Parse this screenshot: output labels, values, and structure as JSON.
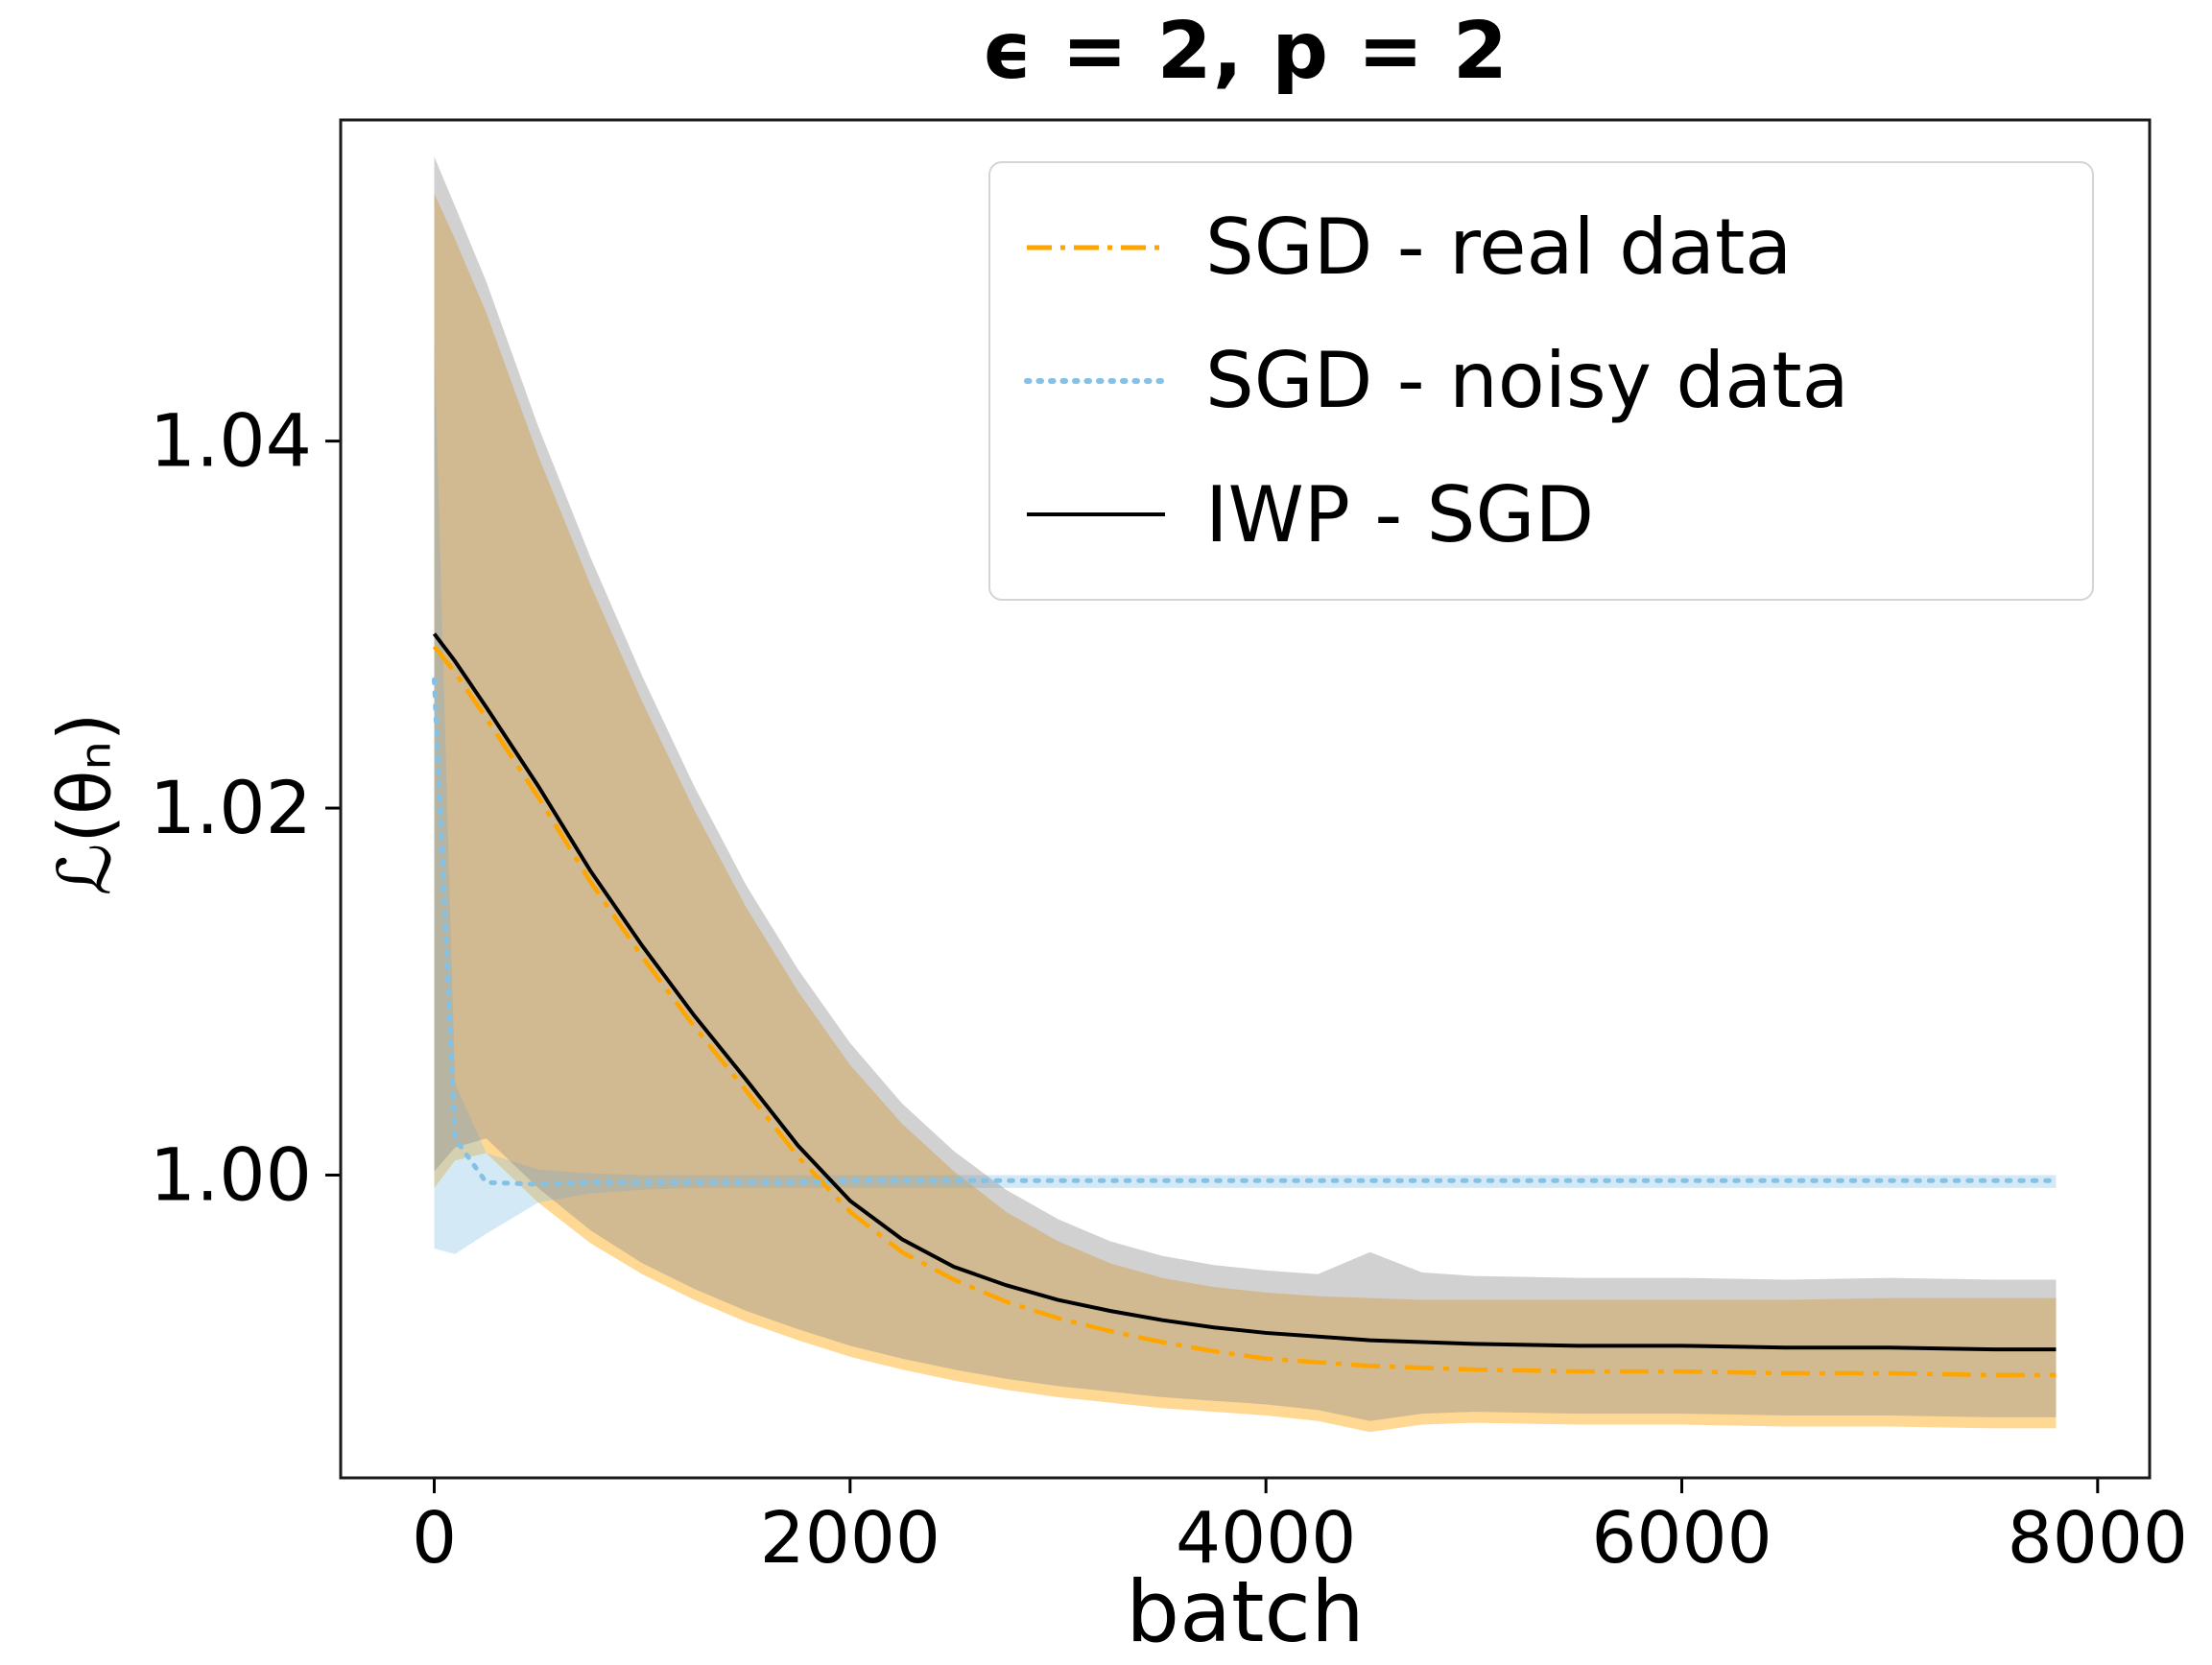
{
  "title": "ϵ = 2, p = 2",
  "axes": {
    "xlabel": "batch",
    "ylabel": "ℒ(θₙ)",
    "x_range": [
      -450,
      8250
    ],
    "y_range": [
      0.9835,
      1.0575
    ],
    "x_ticks": [
      0,
      2000,
      4000,
      6000,
      8000
    ],
    "x_tick_labels": [
      "0",
      "2000",
      "4000",
      "6000",
      "8000"
    ],
    "y_ticks": [
      1.0,
      1.02,
      1.04
    ],
    "y_tick_labels": [
      "1.00",
      "1.02",
      "1.04"
    ],
    "grid": false
  },
  "legend": {
    "position": "upper right",
    "items": [
      {
        "label": "SGD - real data",
        "color": "#FFA500",
        "style": "dashdot"
      },
      {
        "label": "SGD - noisy data",
        "color": "#85C1E5",
        "style": "dotted"
      },
      {
        "label": "IWP - SGD",
        "color": "#000000",
        "style": "solid"
      }
    ]
  },
  "chart_data": {
    "type": "line",
    "title": "ϵ = 2, p = 2",
    "xlabel": "batch",
    "ylabel": "ℒ(θₙ)",
    "xlim": [
      -450,
      8250
    ],
    "ylim": [
      0.9835,
      1.0575
    ],
    "x": [
      0,
      100,
      250,
      500,
      750,
      1000,
      1250,
      1500,
      1750,
      2000,
      2250,
      2500,
      2750,
      3000,
      3250,
      3500,
      3750,
      4000,
      4250,
      4500,
      4750,
      5000,
      5500,
      6000,
      6500,
      7000,
      7500,
      7800
    ],
    "series": [
      {
        "name": "SGD - real data",
        "color": "#FFA500",
        "line_style": "dashdot",
        "band_color": "#FFA500",
        "values": [
          1.0288,
          1.0274,
          1.0249,
          1.0206,
          1.016,
          1.0119,
          1.0081,
          1.0046,
          1.001,
          0.998,
          0.9958,
          0.9943,
          0.9931,
          0.9922,
          0.9915,
          0.9909,
          0.9904,
          0.99,
          0.9898,
          0.9896,
          0.9895,
          0.9894,
          0.9893,
          0.9893,
          0.9892,
          0.9892,
          0.9891,
          0.9891
        ],
        "band_upper": [
          1.0535,
          1.051,
          1.047,
          1.0392,
          1.0322,
          1.0258,
          1.0199,
          1.0146,
          1.01,
          1.006,
          1.0028,
          1.0002,
          0.998,
          0.9964,
          0.9952,
          0.9944,
          0.9939,
          0.9936,
          0.9934,
          0.9933,
          0.9932,
          0.9932,
          0.9932,
          0.9932,
          0.9932,
          0.9933,
          0.9933,
          0.9933
        ],
        "band_lower": [
          0.9993,
          1.0008,
          1.0012,
          0.9985,
          0.9963,
          0.9946,
          0.9932,
          0.992,
          0.991,
          0.9901,
          0.9894,
          0.9888,
          0.9883,
          0.9879,
          0.9876,
          0.9873,
          0.9871,
          0.9869,
          0.9866,
          0.986,
          0.9864,
          0.9865,
          0.9864,
          0.9864,
          0.9863,
          0.9863,
          0.9862,
          0.9862
        ]
      },
      {
        "name": "SGD - noisy data",
        "color": "#85C1E5",
        "line_style": "dotted",
        "band_color": "#85C1E5",
        "values": [
          1.027,
          1.002,
          0.9996,
          0.9995,
          0.9996,
          0.9996,
          0.9996,
          0.9996,
          0.9996,
          0.9997,
          0.9997,
          0.9997,
          0.9997,
          0.9997,
          0.9997,
          0.9997,
          0.9997,
          0.9997,
          0.9997,
          0.9997,
          0.9997,
          0.9997,
          0.9997,
          0.9997,
          0.9997,
          0.9997,
          0.9997,
          0.9997
        ],
        "band_upper": [
          1.0455,
          1.005,
          1.0012,
          1.0003,
          1.0001,
          1.0,
          1.0,
          1.0,
          1.0,
          1.0,
          1.0,
          1.0,
          1.0,
          1.0,
          1.0,
          1.0,
          1.0,
          1.0,
          1.0,
          1.0,
          1.0,
          1.0,
          1.0,
          1.0,
          1.0,
          1.0,
          1.0,
          1.0
        ],
        "band_lower": [
          0.996,
          0.9957,
          0.9968,
          0.9985,
          0.999,
          0.9992,
          0.9993,
          0.9993,
          0.9993,
          0.9993,
          0.9993,
          0.9993,
          0.9993,
          0.9993,
          0.9993,
          0.9993,
          0.9993,
          0.9993,
          0.9993,
          0.9993,
          0.9993,
          0.9993,
          0.9993,
          0.9993,
          0.9993,
          0.9993,
          0.9993,
          0.9993
        ]
      },
      {
        "name": "IWP - SGD",
        "color": "#000000",
        "line_style": "solid",
        "band_color": "#8C8C8C",
        "values": [
          1.0295,
          1.028,
          1.0255,
          1.0212,
          1.0166,
          1.0125,
          1.0087,
          1.0052,
          1.0016,
          0.9986,
          0.9965,
          0.995,
          0.994,
          0.9932,
          0.9926,
          0.9921,
          0.9917,
          0.9914,
          0.9912,
          0.991,
          0.9909,
          0.9908,
          0.9907,
          0.9907,
          0.9906,
          0.9906,
          0.9905,
          0.9905
        ],
        "band_upper": [
          1.0555,
          1.0528,
          1.0487,
          1.0408,
          1.0337,
          1.0272,
          1.0212,
          1.0158,
          1.0112,
          1.0072,
          1.0039,
          1.0013,
          0.9992,
          0.9976,
          0.9964,
          0.9956,
          0.9951,
          0.9948,
          0.9946,
          0.9958,
          0.9947,
          0.9945,
          0.9944,
          0.9944,
          0.9943,
          0.9944,
          0.9943,
          0.9943
        ],
        "band_lower": [
          1.0002,
          1.0015,
          1.002,
          0.9993,
          0.997,
          0.9952,
          0.9938,
          0.9926,
          0.9916,
          0.9907,
          0.99,
          0.9894,
          0.9889,
          0.9885,
          0.9882,
          0.9879,
          0.9877,
          0.9875,
          0.9872,
          0.9866,
          0.987,
          0.9871,
          0.987,
          0.987,
          0.9869,
          0.9869,
          0.9868,
          0.9868
        ]
      }
    ]
  }
}
